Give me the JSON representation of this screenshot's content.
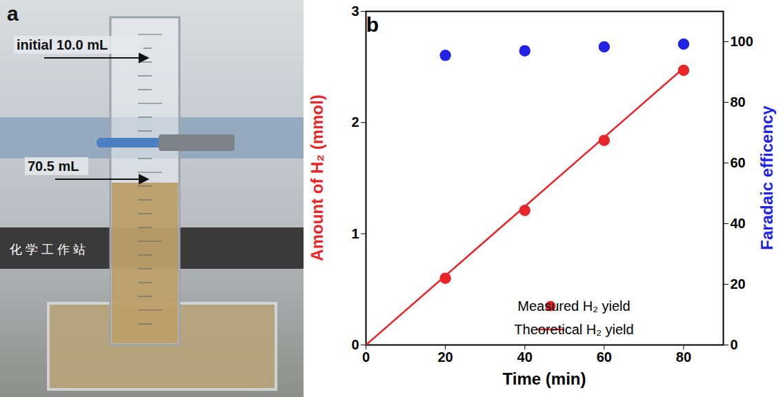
{
  "photo": {
    "label": "a",
    "annotations": [
      "initial 10.0 mL",
      "70.5 mL"
    ],
    "sign": "化 学 工 作 站"
  },
  "chart_data": {
    "type": "scatter",
    "panel_label": "b",
    "xlabel": "Time (min)",
    "ylabel": "Amount of H₂ (mmol)",
    "y2label": "Faradaic efficency",
    "xlim": [
      0,
      90
    ],
    "xticks": [
      0,
      20,
      40,
      60,
      80
    ],
    "ylim": [
      0,
      3
    ],
    "yticks": [
      0,
      1,
      2,
      3
    ],
    "y2lim": [
      0,
      110
    ],
    "y2ticks": [
      0,
      20,
      40,
      60,
      80,
      100
    ],
    "legend": "lower right",
    "series": [
      {
        "name": "Measured H₂ yield",
        "type": "scatter",
        "marker": "circle",
        "color": "#e8262a",
        "x": [
          20,
          40,
          60,
          80
        ],
        "values": [
          0.6,
          1.21,
          1.84,
          2.47
        ]
      },
      {
        "name": "Theoretical H₂ yield",
        "type": "line",
        "line_style": "solid",
        "color": "#e8262a",
        "x": [
          0,
          80
        ],
        "values": [
          0,
          2.49
        ]
      },
      {
        "type": "scatter",
        "marker": "circle",
        "color": "#2323e6",
        "axis": "y2",
        "x": [
          20,
          40,
          60,
          80
        ],
        "values": [
          95.5,
          97.0,
          98.3,
          99.2
        ]
      }
    ]
  }
}
